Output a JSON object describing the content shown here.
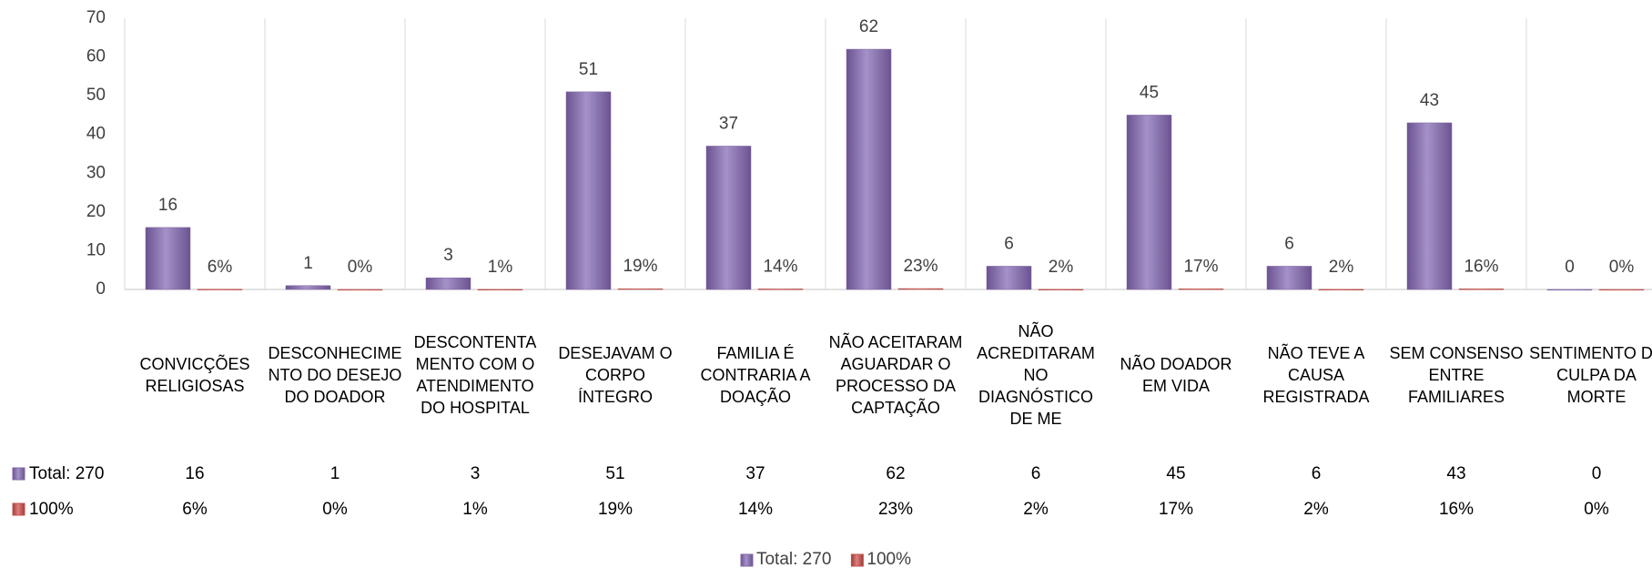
{
  "chart_data": {
    "type": "bar",
    "categories": [
      "CONVICÇÕES RELIGIOSAS",
      "DESCONHECIMENTO DO DESEJO DO DOADOR",
      "DESCONTENTAMENTO COM O ATENDIMENTO DO HOSPITAL",
      "DESEJAVAM O CORPO ÍNTEGRO",
      "FAMILIA É CONTRARIA A DOAÇÃO",
      "NÃO ACEITARAM AGUARDAR O PROCESSO DA CAPTAÇÃO",
      "NÃO ACREDITARAM NO DIAGNÓSTICO DE ME",
      "NÃO DOADOR EM VIDA",
      "NÃO TEVE A CAUSA REGISTRADA",
      "SEM CONSENSO ENTRE FAMILIARES",
      "SENTIMENTO DE CULPA DA MORTE"
    ],
    "series": [
      {
        "name": "Total: 270",
        "color": "#8064a2",
        "values": [
          16,
          1,
          3,
          51,
          37,
          62,
          6,
          45,
          6,
          43,
          0
        ]
      },
      {
        "name": "100%",
        "color": "#c0504d",
        "values": [
          0.06,
          0,
          0.01,
          0.19,
          0.14,
          0.23,
          0.02,
          0.17,
          0.02,
          0.16,
          0
        ],
        "value_labels": [
          "6%",
          "0%",
          "1%",
          "19%",
          "14%",
          "23%",
          "2%",
          "17%",
          "2%",
          "16%",
          "0%"
        ]
      }
    ],
    "ylim": [
      0,
      70
    ],
    "yticks": [
      0,
      10,
      20,
      30,
      40,
      50,
      60,
      70
    ],
    "data_table": true,
    "legend": "bottom"
  }
}
